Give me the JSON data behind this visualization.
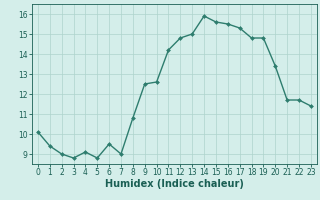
{
  "x": [
    0,
    1,
    2,
    3,
    4,
    5,
    6,
    7,
    8,
    9,
    10,
    11,
    12,
    13,
    14,
    15,
    16,
    17,
    18,
    19,
    20,
    21,
    22,
    23
  ],
  "y": [
    10.1,
    9.4,
    9.0,
    8.8,
    9.1,
    8.8,
    9.5,
    9.0,
    10.8,
    12.5,
    12.6,
    14.2,
    14.8,
    15.0,
    15.9,
    15.6,
    15.5,
    15.3,
    14.8,
    14.8,
    13.4,
    11.7,
    11.7,
    11.4
  ],
  "line_color": "#2e7d6e",
  "marker": "D",
  "markersize": 2.0,
  "linewidth": 1.0,
  "xlabel": "Humidex (Indice chaleur)",
  "xlabel_fontsize": 7.0,
  "xlabel_color": "#1a5f54",
  "ylim": [
    8.5,
    16.5
  ],
  "xlim": [
    -0.5,
    23.5
  ],
  "yticks": [
    9,
    10,
    11,
    12,
    13,
    14,
    15,
    16
  ],
  "xticks": [
    0,
    1,
    2,
    3,
    4,
    5,
    6,
    7,
    8,
    9,
    10,
    11,
    12,
    13,
    14,
    15,
    16,
    17,
    18,
    19,
    20,
    21,
    22,
    23
  ],
  "grid_color": "#aed4cc",
  "bg_color": "#d4eeea",
  "tick_color": "#1a5f54",
  "tick_fontsize": 5.5,
  "fig_bg_color": "#d4eeea"
}
